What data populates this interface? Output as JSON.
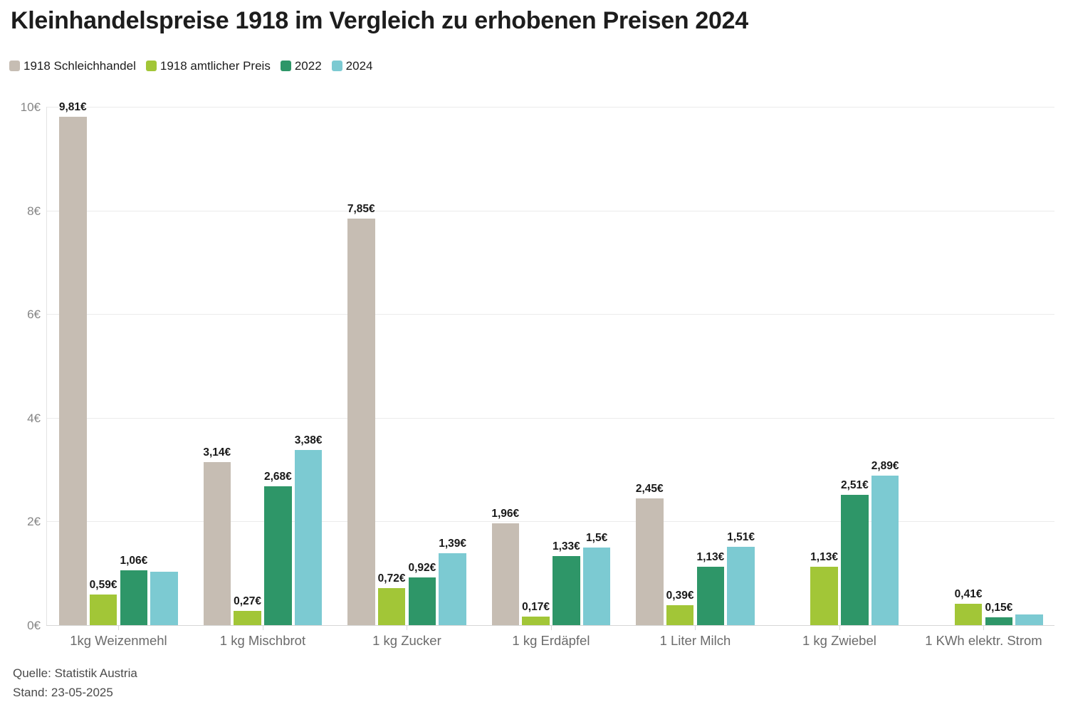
{
  "title": "Kleinhandelspreise 1918 im Vergleich zu erhobenen Preisen 2024",
  "legend": [
    {
      "label": "1918 Schleichhandel",
      "color": "#c6bdb3"
    },
    {
      "label": "1918 amtlicher Preis",
      "color": "#a2c637"
    },
    {
      "label": "2022",
      "color": "#2e9668"
    },
    {
      "label": "2024",
      "color": "#7ccad2"
    }
  ],
  "footer": {
    "source": "Quelle: Statistik Austria",
    "stand": "Stand: 23-05-2025"
  },
  "chart_data": {
    "type": "bar",
    "title": "Kleinhandelspreise 1918 im Vergleich zu erhobenen Preisen 2024",
    "categories": [
      "1kg Weizenmehl",
      "1 kg Mischbrot",
      "1 kg Zucker",
      "1 kg Erdäpfel",
      "1 Liter Milch",
      "1 kg Zwiebel",
      "1 KWh elektr. Strom"
    ],
    "series": [
      {
        "name": "1918 Schleichhandel",
        "color": "#c6bdb3",
        "values": [
          9.81,
          3.14,
          7.85,
          1.96,
          2.45,
          null,
          null
        ],
        "labels": [
          "9,81€",
          "3,14€",
          "7,85€",
          "1,96€",
          "2,45€",
          null,
          null
        ]
      },
      {
        "name": "1918 amtlicher Preis",
        "color": "#a2c637",
        "values": [
          0.59,
          0.27,
          0.72,
          0.17,
          0.39,
          1.13,
          0.41
        ],
        "labels": [
          "0,59€",
          "0,27€",
          "0,72€",
          "0,17€",
          "0,39€",
          "1,13€",
          "0,41€"
        ]
      },
      {
        "name": "2022",
        "color": "#2e9668",
        "values": [
          1.06,
          2.68,
          0.92,
          1.33,
          1.13,
          2.51,
          0.15
        ],
        "labels": [
          "1,06€",
          "2,68€",
          "0,92€",
          "1,33€",
          "1,13€",
          "2,51€",
          "0,15€"
        ]
      },
      {
        "name": "2024",
        "color": "#7ccad2",
        "values": [
          1.03,
          3.38,
          1.39,
          1.5,
          1.51,
          2.89,
          0.2
        ],
        "labels": [
          null,
          "3,38€",
          "1,39€",
          "1,5€",
          "1,51€",
          "2,89€",
          null
        ]
      }
    ],
    "ylabel": "",
    "xlabel": "",
    "ylim": [
      0,
      10
    ],
    "yticks": [
      {
        "value": 0,
        "label": "0€"
      },
      {
        "value": 2,
        "label": "2€"
      },
      {
        "value": 4,
        "label": "4€"
      },
      {
        "value": 6,
        "label": "6€"
      },
      {
        "value": 8,
        "label": "8€"
      },
      {
        "value": 10,
        "label": "10€"
      }
    ],
    "grid": true,
    "legend_position": "top",
    "value_labels_shown": true
  }
}
